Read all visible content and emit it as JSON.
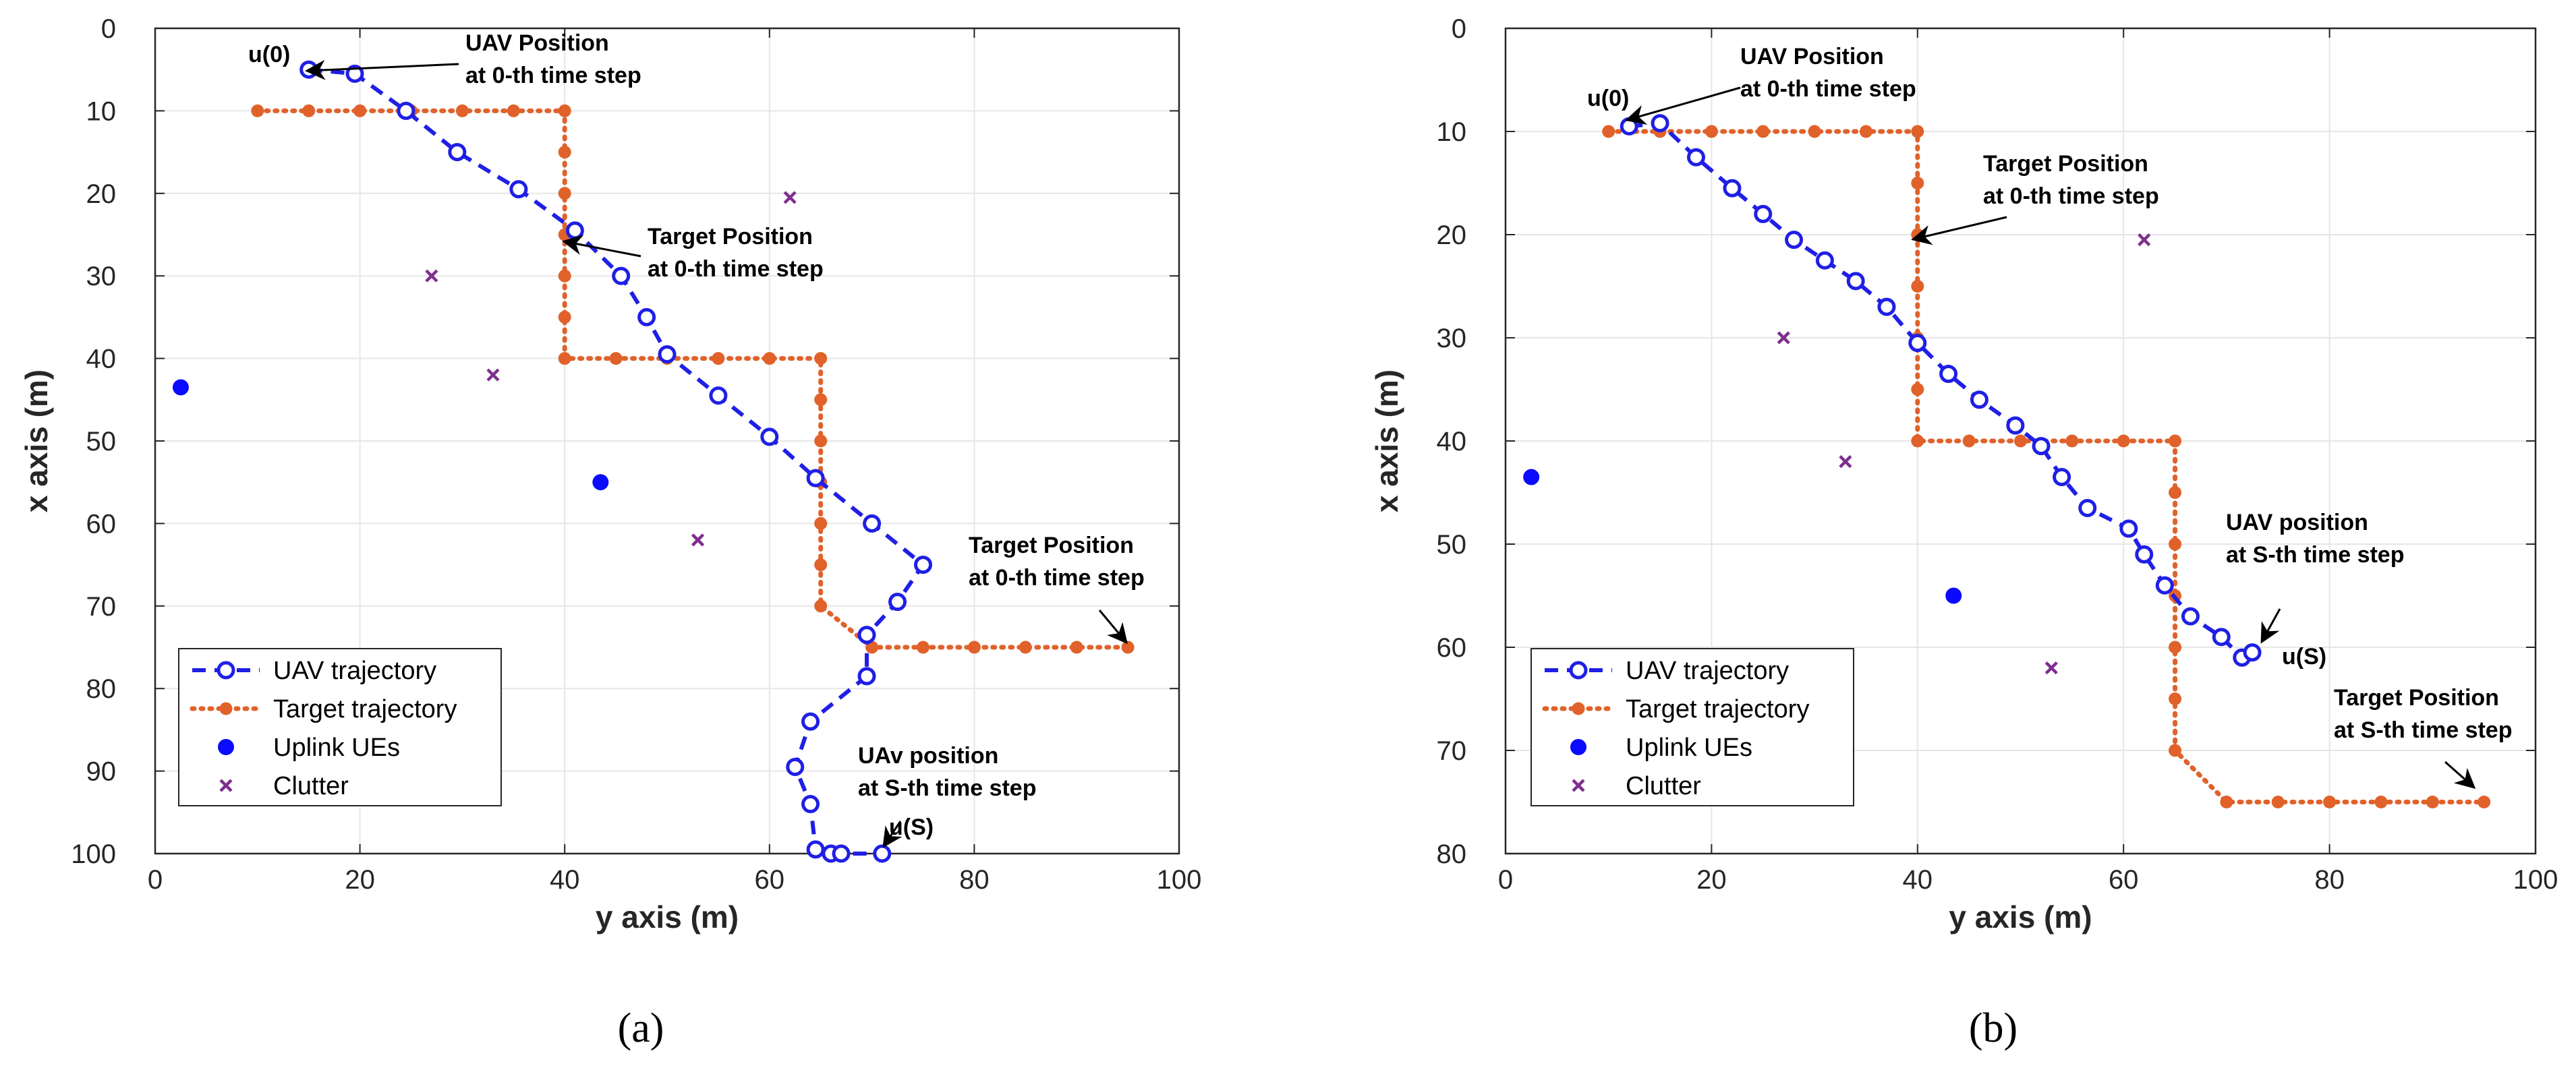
{
  "legend_labels": [
    "UAV trajectory",
    "Target trajectory",
    "Uplink UEs",
    "Clutter"
  ],
  "colors": {
    "uav": "#1f1fe6",
    "target": "#e0622a",
    "ue": "#0a0aff",
    "clutter": "#7e2f8e",
    "grid": "#e6e6e6",
    "axis": "#262626"
  },
  "chart_data": [
    {
      "type": "line",
      "caption": "(a)",
      "xlabel": "y axis (m)",
      "ylabel": "x axis (m)",
      "xlim": [
        0,
        100
      ],
      "ylim": [
        0,
        100
      ],
      "y_reversed": true,
      "xticks": [
        0,
        20,
        40,
        60,
        80,
        100
      ],
      "yticks": [
        0,
        10,
        20,
        30,
        40,
        50,
        60,
        70,
        80,
        90,
        100
      ],
      "grid": true,
      "legend_position": "bottom-left",
      "series": [
        {
          "name": "UAV trajectory",
          "x": [
            15,
            19.5,
            24.5,
            29.5,
            35.5,
            41,
            45.5,
            48,
            50,
            55,
            60,
            64.5,
            70,
            75,
            72.5,
            69.5,
            69.5,
            64,
            62.5,
            64,
            64.5,
            66,
            67,
            71
          ],
          "y": [
            5,
            5.5,
            10,
            15,
            19.5,
            24.5,
            30,
            35,
            39.5,
            44.5,
            49.5,
            54.5,
            60,
            65,
            69.5,
            73.5,
            78.5,
            84,
            89.5,
            94,
            99.5,
            100,
            100,
            100
          ]
        },
        {
          "name": "Target trajectory",
          "x": [
            10,
            15,
            20,
            25,
            30,
            35,
            40,
            40,
            40,
            40,
            40,
            40,
            40,
            45,
            50,
            55,
            60,
            65,
            65,
            65,
            65,
            65,
            65,
            65,
            70,
            75,
            80,
            85,
            90,
            95
          ],
          "y": [
            10,
            10,
            10,
            10,
            10,
            10,
            10,
            15,
            20,
            25,
            30,
            35,
            40,
            40,
            40,
            40,
            40,
            40,
            45,
            50,
            55,
            60,
            65,
            70,
            75,
            75,
            75,
            75,
            75,
            75
          ]
        },
        {
          "name": "Uplink UEs",
          "x": [
            2.5,
            43.5
          ],
          "y": [
            43.5,
            55
          ]
        },
        {
          "name": "Clutter",
          "x": [
            27,
            33,
            62,
            53
          ],
          "y": [
            30,
            42,
            20.5,
            62
          ]
        }
      ],
      "annotations": [
        {
          "lines": [
            "UAV Position",
            "at 0-th time step"
          ]
        },
        {
          "lines": [
            "Target Position",
            "at 0-th time step"
          ]
        },
        {
          "lines": [
            "Target Position",
            "at 0-th time step"
          ]
        },
        {
          "lines": [
            "UAv position",
            "at S-th time step"
          ]
        },
        {
          "lines": [
            "u(0)"
          ]
        },
        {
          "lines": [
            "u(S)"
          ]
        }
      ]
    },
    {
      "type": "line",
      "caption": "(b)",
      "xlabel": "y axis (m)",
      "ylabel": "x axis (m)",
      "xlim": [
        0,
        100
      ],
      "ylim": [
        0,
        80
      ],
      "y_reversed": true,
      "xticks": [
        0,
        20,
        40,
        60,
        80,
        100
      ],
      "yticks": [
        0,
        10,
        20,
        30,
        40,
        50,
        60,
        70,
        80
      ],
      "grid": true,
      "legend_position": "bottom-left",
      "series": [
        {
          "name": "UAV trajectory",
          "x": [
            12,
            15,
            18.5,
            22,
            25,
            28,
            31,
            34,
            37,
            40,
            43,
            46,
            49.5,
            52,
            54,
            56.5,
            60.5,
            62,
            64,
            66.5,
            69.5,
            71.5,
            72.5
          ],
          "y": [
            9.5,
            9.2,
            12.5,
            15.5,
            18,
            20.5,
            22.5,
            24.5,
            27,
            30.5,
            33.5,
            36,
            38.5,
            40.5,
            43.5,
            46.5,
            48.5,
            51,
            54,
            57,
            59,
            61,
            60.5
          ]
        },
        {
          "name": "Target trajectory",
          "x": [
            10,
            15,
            20,
            25,
            30,
            35,
            40,
            40,
            40,
            40,
            40,
            40,
            40,
            45,
            50,
            55,
            60,
            65,
            65,
            65,
            65,
            65,
            65,
            65,
            70,
            75,
            80,
            85,
            90,
            95
          ],
          "y": [
            10,
            10,
            10,
            10,
            10,
            10,
            10,
            15,
            20,
            25,
            30,
            35,
            40,
            40,
            40,
            40,
            40,
            40,
            45,
            50,
            55,
            60,
            65,
            70,
            75,
            75,
            75,
            75,
            75,
            75
          ]
        },
        {
          "name": "Uplink UEs",
          "x": [
            2.5,
            43.5
          ],
          "y": [
            43.5,
            55
          ]
        },
        {
          "name": "Clutter",
          "x": [
            27,
            33,
            62,
            53
          ],
          "y": [
            30,
            42,
            20.5,
            62
          ]
        }
      ],
      "annotations": [
        {
          "lines": [
            "UAV Position",
            "at 0-th time step"
          ]
        },
        {
          "lines": [
            "Target Position",
            "at 0-th time step"
          ]
        },
        {
          "lines": [
            "UAV position",
            "at S-th time step"
          ]
        },
        {
          "lines": [
            "Target Position",
            "at S-th time step"
          ]
        },
        {
          "lines": [
            "u(0)"
          ]
        },
        {
          "lines": [
            "u(S)"
          ]
        }
      ]
    }
  ]
}
